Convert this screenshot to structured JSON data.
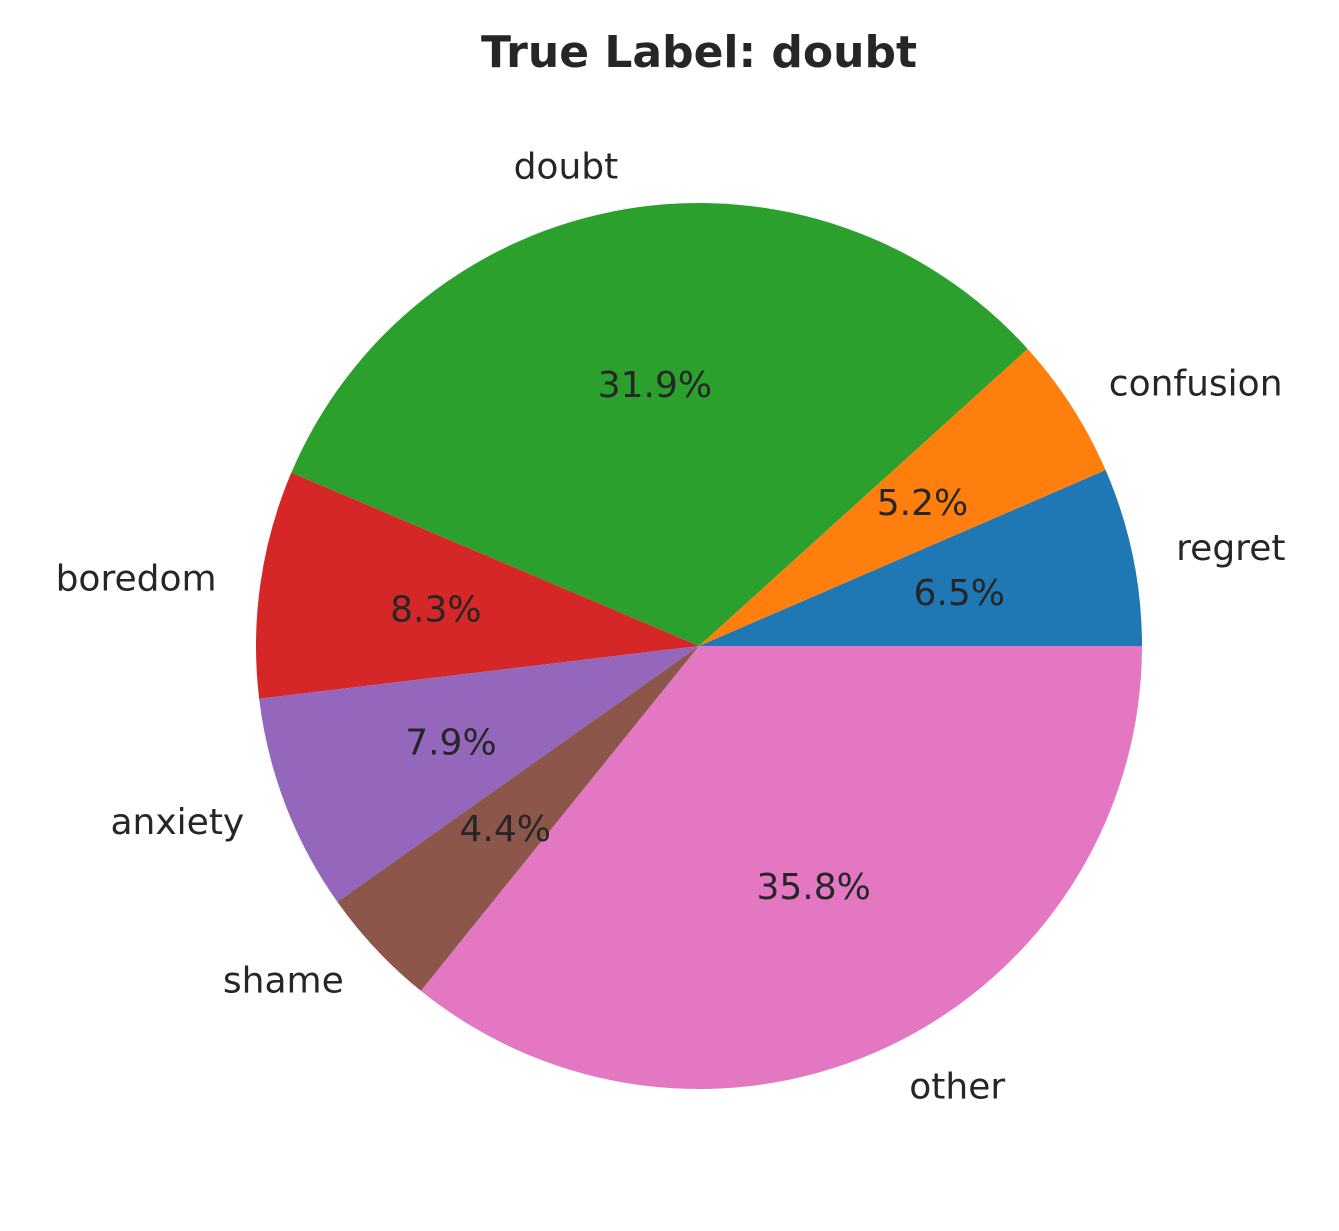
{
  "chart_data": {
    "type": "pie",
    "title": "True Label: doubt",
    "start_angle": 0,
    "direction": "counterclockwise",
    "slices": [
      {
        "label": "regret",
        "value": 6.5,
        "pct_label": "6.5%",
        "color": "#1f77b4"
      },
      {
        "label": "confusion",
        "value": 5.2,
        "pct_label": "5.2%",
        "color": "#ff7f0e"
      },
      {
        "label": "doubt",
        "value": 31.9,
        "pct_label": "31.9%",
        "color": "#2ca02c"
      },
      {
        "label": "boredom",
        "value": 8.3,
        "pct_label": "8.3%",
        "color": "#d62728"
      },
      {
        "label": "anxiety",
        "value": 7.9,
        "pct_label": "7.9%",
        "color": "#9467bd"
      },
      {
        "label": "shame",
        "value": 4.4,
        "pct_label": "4.4%",
        "color": "#8c564b"
      },
      {
        "label": "other",
        "value": 35.8,
        "pct_label": "35.8%",
        "color": "#e377c2"
      }
    ]
  }
}
